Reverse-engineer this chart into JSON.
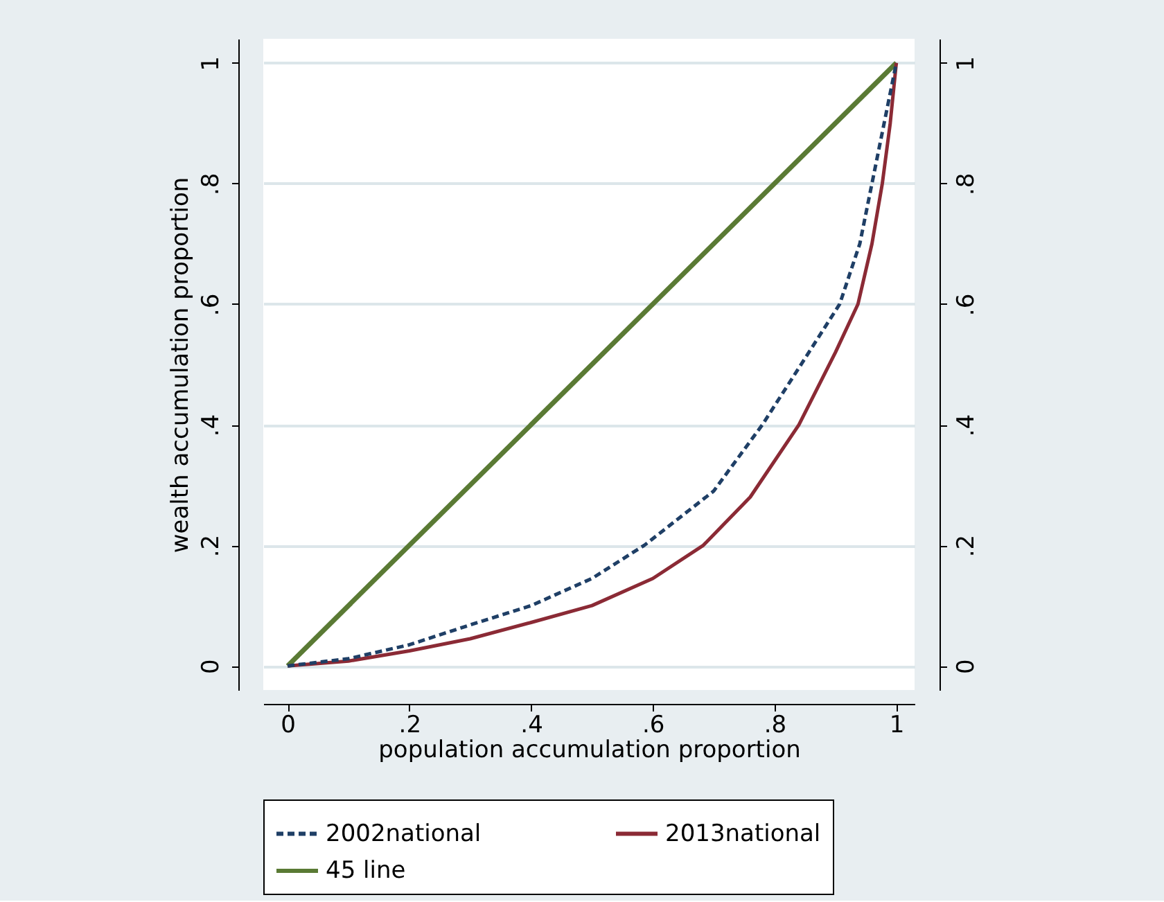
{
  "chart_data": {
    "type": "line",
    "xlabel": "population accumulation proportion",
    "ylabel": "wealth accumulation proportion",
    "xlim": [
      -0.04,
      1.03
    ],
    "ylim": [
      -0.04,
      1.04
    ],
    "y2lim": [
      -0.04,
      1.04
    ],
    "xticks": [
      0,
      {
        "value": 0.2,
        "label": ".2"
      },
      {
        "value": 0.4,
        "label": ".4"
      },
      {
        "value": 0.6,
        "label": ".6"
      },
      {
        "value": 0.8,
        "label": ".8"
      },
      1
    ],
    "yticks": [
      0,
      {
        "value": 0.2,
        "label": ".2"
      },
      {
        "value": 0.4,
        "label": ".4"
      },
      {
        "value": 0.6,
        "label": ".6"
      },
      {
        "value": 0.8,
        "label": ".8"
      },
      1
    ],
    "y2ticks": [
      0,
      {
        "value": 0.2,
        "label": ".2"
      },
      {
        "value": 0.4,
        "label": ".4"
      },
      {
        "value": 0.6,
        "label": ".6"
      },
      {
        "value": 0.8,
        "label": ".8"
      },
      1
    ],
    "grid": "y",
    "legend": "bottom",
    "series": [
      {
        "name": "2002national",
        "color": "#1f3f66",
        "line_style": "dashed",
        "x": [
          0,
          0.1,
          0.2,
          0.3,
          0.4,
          0.5,
          0.586,
          0.7,
          0.78,
          0.85,
          0.907,
          0.94,
          0.96,
          0.98,
          1
        ],
        "values": [
          0,
          0.012,
          0.035,
          0.068,
          0.1,
          0.145,
          0.2,
          0.29,
          0.4,
          0.51,
          0.6,
          0.7,
          0.8,
          0.9,
          1
        ]
      },
      {
        "name": "2013national",
        "color": "#8b2a35",
        "line_style": "solid",
        "x": [
          0,
          0.1,
          0.2,
          0.3,
          0.4,
          0.5,
          0.6,
          0.683,
          0.76,
          0.84,
          0.9,
          0.937,
          0.96,
          0.977,
          0.99,
          1
        ],
        "values": [
          0,
          0.008,
          0.025,
          0.045,
          0.072,
          0.1,
          0.145,
          0.2,
          0.28,
          0.4,
          0.52,
          0.6,
          0.7,
          0.8,
          0.9,
          1
        ]
      },
      {
        "name": "45 line",
        "color": "#5a7a34",
        "line_style": "solid",
        "x": [
          0,
          1
        ],
        "values": [
          0,
          1
        ]
      }
    ]
  }
}
